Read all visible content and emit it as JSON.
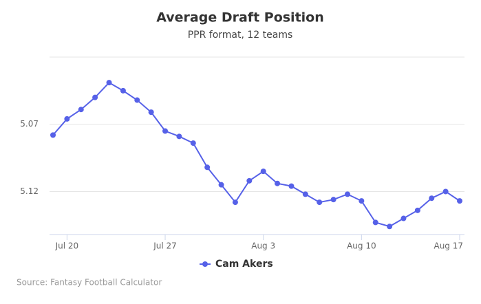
{
  "chart_data": {
    "type": "line",
    "title": "Average Draft Position",
    "subtitle": "PPR format, 12 teams",
    "source": "Source: Fantasy Football Calculator",
    "categories": [
      null,
      "Jul 20",
      null,
      null,
      null,
      null,
      null,
      null,
      "Jul 27",
      null,
      null,
      null,
      null,
      null,
      null,
      "Aug 3",
      null,
      null,
      null,
      null,
      null,
      null,
      "Aug 10",
      null,
      null,
      null,
      null,
      null,
      null,
      "Aug 17"
    ],
    "series": [
      {
        "name": "Cam Akers",
        "color": "#5661e8",
        "values": [
          5.078,
          5.066,
          5.059,
          5.05,
          5.039,
          5.045,
          5.052,
          5.061,
          5.075,
          5.079,
          5.084,
          5.102,
          5.115,
          5.128,
          5.112,
          5.105,
          5.114,
          5.116,
          5.122,
          5.128,
          5.126,
          5.122,
          5.127,
          5.143,
          5.146,
          5.14,
          5.134,
          5.125,
          5.12,
          5.127
        ]
      }
    ],
    "ylim": [
      5.02,
      5.152
    ],
    "y_reversed": true,
    "yticks": [
      5.07,
      5.12
    ],
    "grid": true
  }
}
